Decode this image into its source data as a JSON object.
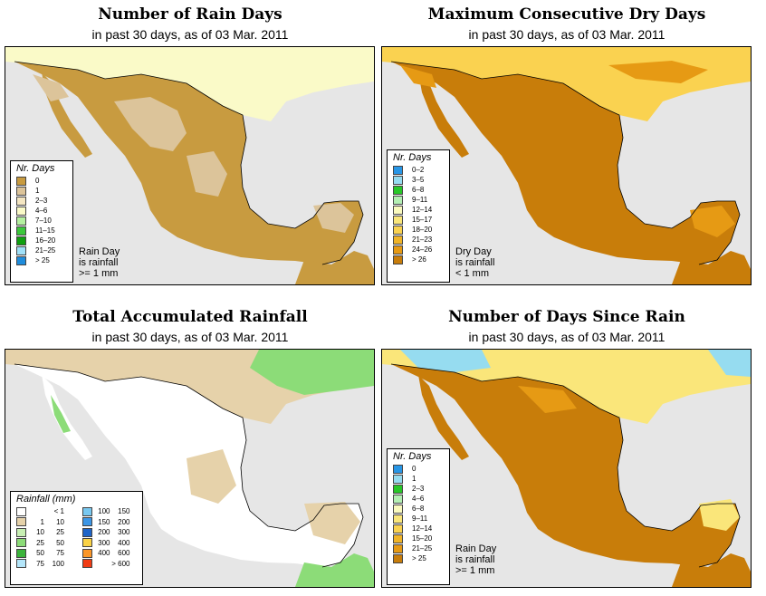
{
  "panels": {
    "p1": {
      "title": "Number of Rain Days",
      "subtitle": "in past 30 days, as of  03 Mar. 2011",
      "legend_title": "Nr. Days",
      "legend": [
        {
          "label": "0",
          "color": "#c89b40"
        },
        {
          "label": "1",
          "color": "#dcc49a"
        },
        {
          "label": "2–3",
          "color": "#f4e6c2"
        },
        {
          "label": "4–6",
          "color": "#fafac8"
        },
        {
          "label": "7–10",
          "color": "#b4f0a0"
        },
        {
          "label": "11–15",
          "color": "#3cc83c"
        },
        {
          "label": "16–20",
          "color": "#10a010"
        },
        {
          "label": "21–25",
          "color": "#a0e0f8"
        },
        {
          "label": "> 25",
          "color": "#1e8cdc"
        }
      ],
      "note": [
        "Rain Day",
        "is rainfall",
        ">= 1 mm"
      ]
    },
    "p2": {
      "title": "Maximum Consecutive Dry Days",
      "subtitle": "in past 30 days, as of  03 Mar. 2011",
      "legend_title": "Nr. Days",
      "legend": [
        {
          "label": "0–2",
          "color": "#2896e6"
        },
        {
          "label": "3–5",
          "color": "#96dcf0"
        },
        {
          "label": "6–8",
          "color": "#28c828"
        },
        {
          "label": "9–11",
          "color": "#b4f0b4"
        },
        {
          "label": "12–14",
          "color": "#fafabe"
        },
        {
          "label": "15–17",
          "color": "#fae67a"
        },
        {
          "label": "18–20",
          "color": "#fad250"
        },
        {
          "label": "21–23",
          "color": "#f0b428"
        },
        {
          "label": "24–26",
          "color": "#e69a14"
        },
        {
          "label": "> 26",
          "color": "#c87d0a"
        }
      ],
      "note": [
        "Dry Day",
        "is rainfall",
        "< 1 mm"
      ]
    },
    "p3": {
      "title": "Total Accumulated Rainfall",
      "subtitle": "in past 30 days, as of  03 Mar. 2011",
      "legend_title": "Rainfall (mm)",
      "legend_left": [
        {
          "a": "",
          "b": "< 1",
          "color": "#ffffff"
        },
        {
          "a": "1",
          "b": "10",
          "color": "#e6d2aa"
        },
        {
          "a": "10",
          "b": "25",
          "color": "#c8f0b4"
        },
        {
          "a": "25",
          "b": "50",
          "color": "#8cdc78"
        },
        {
          "a": "50",
          "b": "75",
          "color": "#3cb43c"
        },
        {
          "a": "75",
          "b": "100",
          "color": "#b4e6fa"
        }
      ],
      "legend_right": [
        {
          "a": "100",
          "b": "150",
          "color": "#78c8f0"
        },
        {
          "a": "150",
          "b": "200",
          "color": "#3c96e6"
        },
        {
          "a": "200",
          "b": "300",
          "color": "#1e64c8"
        },
        {
          "a": "300",
          "b": "400",
          "color": "#fad246"
        },
        {
          "a": "400",
          "b": "600",
          "color": "#fa9628"
        },
        {
          "a": "",
          "b": "> 600",
          "color": "#f03c14"
        }
      ]
    },
    "p4": {
      "title": "Number of Days Since Rain",
      "subtitle": "in past 30 days, as of  03 Mar. 2011",
      "legend_title": "Nr. Days",
      "legend": [
        {
          "label": "0",
          "color": "#2896e6"
        },
        {
          "label": "1",
          "color": "#96dcf0"
        },
        {
          "label": "2–3",
          "color": "#28c828"
        },
        {
          "label": "4–6",
          "color": "#b4f0b4"
        },
        {
          "label": "6–8",
          "color": "#fafabe"
        },
        {
          "label": "9–11",
          "color": "#fae67a"
        },
        {
          "label": "12–14",
          "color": "#fad250"
        },
        {
          "label": "15–20",
          "color": "#f0b428"
        },
        {
          "label": "21–25",
          "color": "#e69a14"
        },
        {
          "label": "> 25",
          "color": "#c87d0a"
        }
      ],
      "note": [
        "Rain Day",
        "is rainfall",
        ">= 1 mm"
      ]
    }
  },
  "palette": {
    "ocean": "#e6e6e6",
    "p1_land": "#c89b40",
    "p1_alt": "#dcc49a",
    "p1_north": "#fafac8",
    "p2_land": "#c87d0a",
    "p2_alt": "#e69a14",
    "p2_north": "#fad250",
    "p3_land": "#ffffff",
    "p3_alt": "#e6d2aa",
    "p3_green": "#8cdc78",
    "p4_land": "#c87d0a",
    "p4_alt": "#e69a14",
    "p4_north": "#fae67a",
    "p4_blue": "#96dcf0"
  }
}
